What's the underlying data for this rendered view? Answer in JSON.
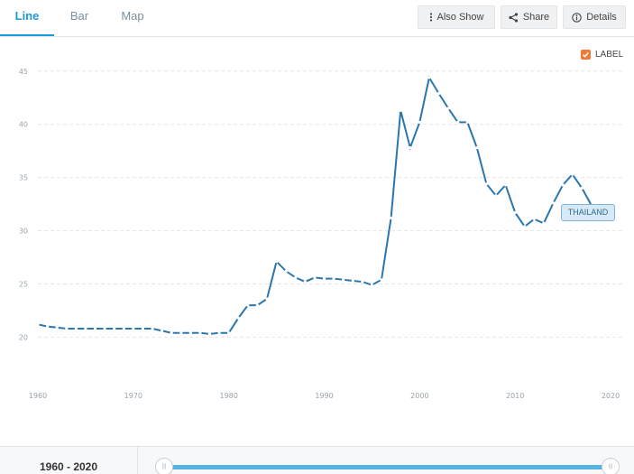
{
  "tabs": [
    {
      "label": "Line"
    },
    {
      "label": "Bar"
    },
    {
      "label": "Map"
    }
  ],
  "toolbar": {
    "also_show_label": "Also Show",
    "share_label": "Share",
    "details_label": "Details"
  },
  "label_toggle": {
    "label": "LABEL",
    "checked": true
  },
  "range": {
    "label": "1960 - 2020"
  },
  "slider_handles": {
    "left": "|||",
    "right": "|||"
  },
  "colors": {
    "line": "#2b76ad",
    "accent": "#1a9ad6",
    "checkbox": "#f07938"
  },
  "chart_data": {
    "type": "line",
    "title": "",
    "xlabel": "",
    "ylabel": "",
    "xlim": [
      1960,
      2020
    ],
    "ylim": [
      18,
      46
    ],
    "xticks": [
      1960,
      1970,
      1980,
      1990,
      2000,
      2010,
      2020
    ],
    "yticks": [
      20,
      25,
      30,
      35,
      40,
      45
    ],
    "grid": true,
    "series": [
      {
        "name": "THAILAND",
        "x": [
          1960,
          1961,
          1962,
          1963,
          1964,
          1965,
          1966,
          1967,
          1968,
          1969,
          1970,
          1971,
          1972,
          1973,
          1974,
          1975,
          1976,
          1977,
          1978,
          1979,
          1980,
          1981,
          1982,
          1983,
          1984,
          1985,
          1986,
          1987,
          1988,
          1989,
          1990,
          1991,
          1992,
          1993,
          1994,
          1995,
          1996,
          1997,
          1998,
          1999,
          2000,
          2001,
          2002,
          2003,
          2004,
          2005,
          2006,
          2007,
          2008,
          2009,
          2010,
          2011,
          2012,
          2013,
          2014,
          2015,
          2016,
          2017,
          2018,
          2019,
          2020
        ],
        "values": [
          21.2,
          21.0,
          20.9,
          20.8,
          20.8,
          20.8,
          20.8,
          20.8,
          20.8,
          20.8,
          20.8,
          20.8,
          20.8,
          20.6,
          20.4,
          20.4,
          20.4,
          20.4,
          20.3,
          20.4,
          20.4,
          21.8,
          23.0,
          23.0,
          23.6,
          27.1,
          26.2,
          25.6,
          25.2,
          25.6,
          25.5,
          25.5,
          25.4,
          25.3,
          25.2,
          24.9,
          25.4,
          31.2,
          41.3,
          37.8,
          40.2,
          44.4,
          42.9,
          41.5,
          40.2,
          40.2,
          37.8,
          34.4,
          33.3,
          34.3,
          31.7,
          30.4,
          31.1,
          30.7,
          32.6,
          34.3,
          35.3,
          34.0,
          32.4,
          31.0,
          31.2
        ]
      }
    ]
  }
}
